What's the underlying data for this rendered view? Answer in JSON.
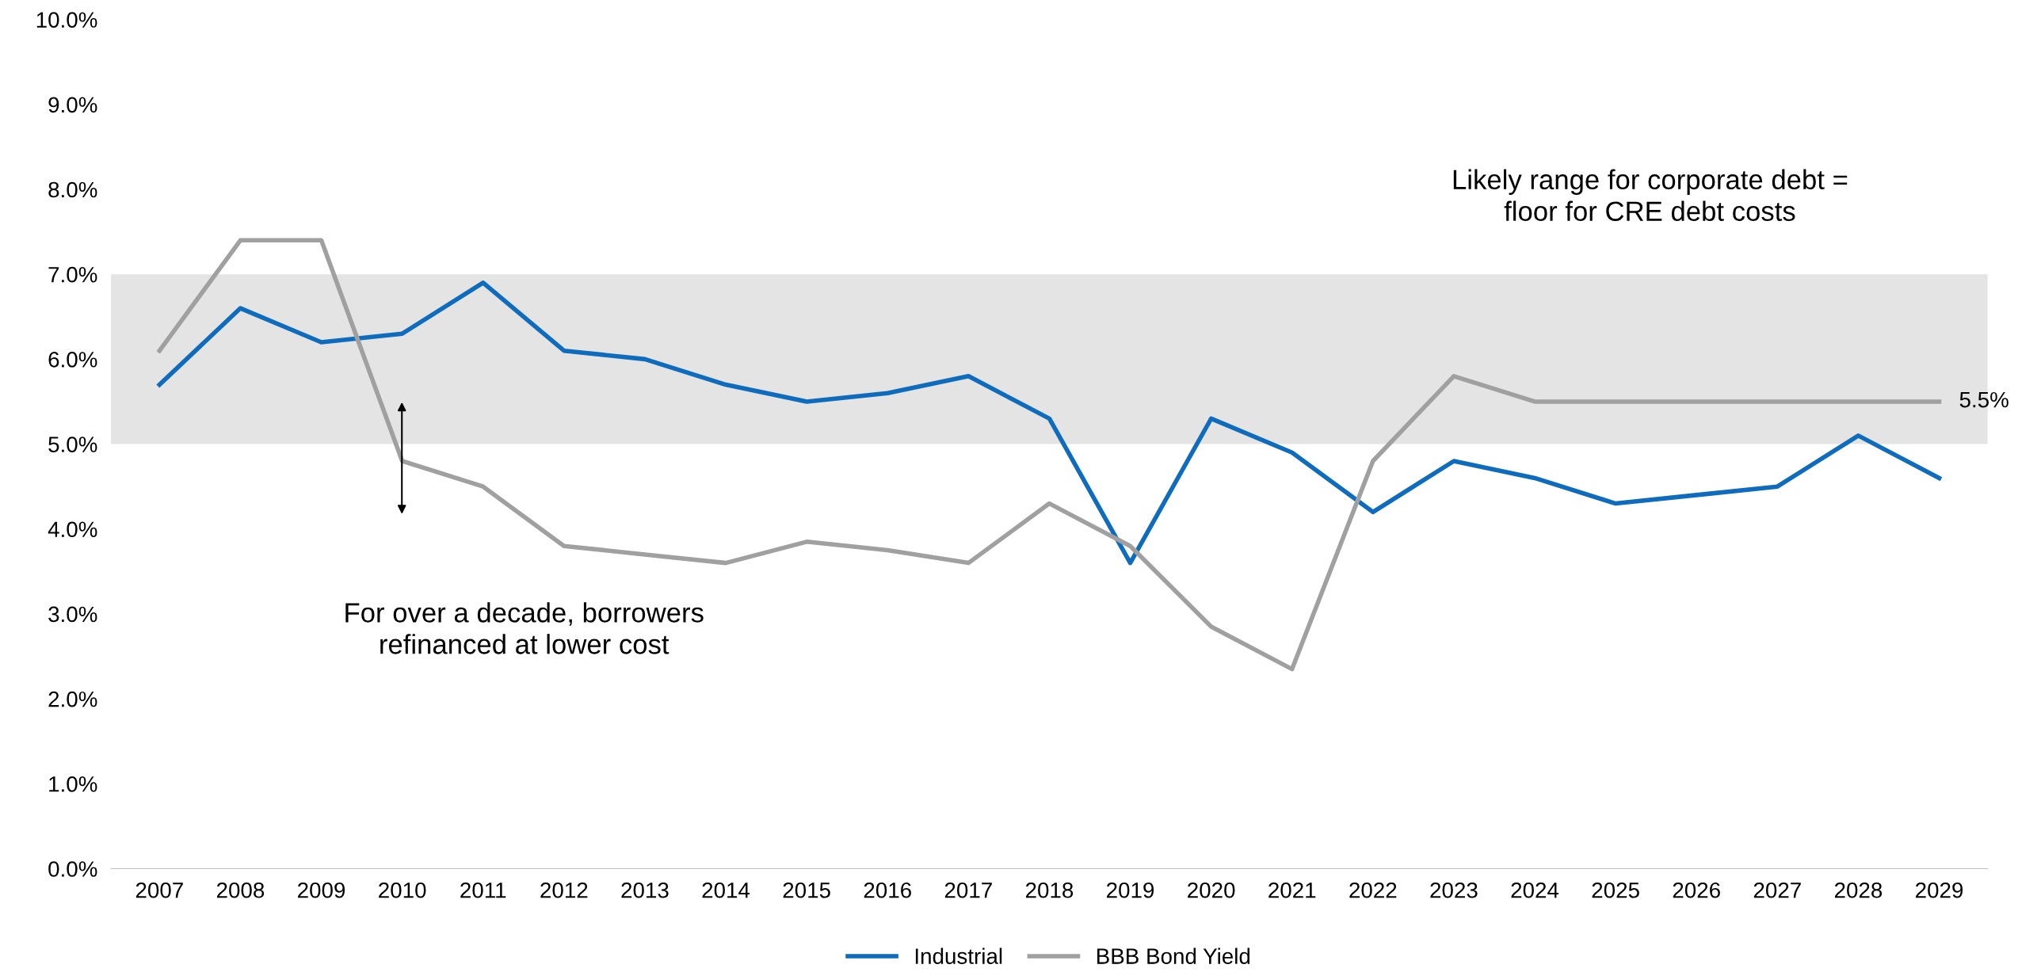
{
  "chart_data": {
    "type": "line",
    "categories": [
      "2007",
      "2008",
      "2009",
      "2010",
      "2011",
      "2012",
      "2013",
      "2014",
      "2015",
      "2016",
      "2017",
      "2018",
      "2019",
      "2020",
      "2021",
      "2022",
      "2023",
      "2024",
      "2025",
      "2026",
      "2027",
      "2028",
      "2029"
    ],
    "series": [
      {
        "name": "Industrial",
        "color": "#0f6cbd",
        "values": [
          5.7,
          6.6,
          6.2,
          6.3,
          6.9,
          6.1,
          6.0,
          5.7,
          5.5,
          5.6,
          5.8,
          5.3,
          3.6,
          5.3,
          4.9,
          4.2,
          4.8,
          4.6,
          4.3,
          4.4,
          4.5,
          5.1,
          4.6
        ]
      },
      {
        "name": "BBB Bond Yield",
        "color": "#a0a0a0",
        "values": [
          6.1,
          7.4,
          7.4,
          4.8,
          4.5,
          3.8,
          3.7,
          3.6,
          3.85,
          3.75,
          3.6,
          4.3,
          3.8,
          2.85,
          2.35,
          4.8,
          5.8,
          5.5,
          5.5,
          5.5,
          5.5,
          5.5,
          5.5
        ]
      }
    ],
    "ylim": [
      0,
      10
    ],
    "yticks": [
      {
        "value": 0,
        "label": "0.0%"
      },
      {
        "value": 1,
        "label": "1.0%"
      },
      {
        "value": 2,
        "label": "2.0%"
      },
      {
        "value": 3,
        "label": "3.0%"
      },
      {
        "value": 4,
        "label": "4.0%"
      },
      {
        "value": 5,
        "label": "5.0%"
      },
      {
        "value": 6,
        "label": "6.0%"
      },
      {
        "value": 7,
        "label": "7.0%"
      },
      {
        "value": 8,
        "label": "8.0%"
      },
      {
        "value": 9,
        "label": "9.0%"
      },
      {
        "value": 10,
        "label": "10.0%"
      }
    ],
    "bands": [
      {
        "axis": "y",
        "from": 5,
        "to": 7,
        "color": "#e4e4e4"
      }
    ],
    "annotations": [
      "Likely range for corporate debt =\nfloor for CRE debt costs",
      "For over a decade, borrowers\nrefinanced at lower cost",
      {
        "text": "5.5%",
        "x": "2029",
        "y": 5.5
      }
    ],
    "legend": "bottom",
    "grid": false,
    "marker": "none",
    "line_style": "solid"
  }
}
